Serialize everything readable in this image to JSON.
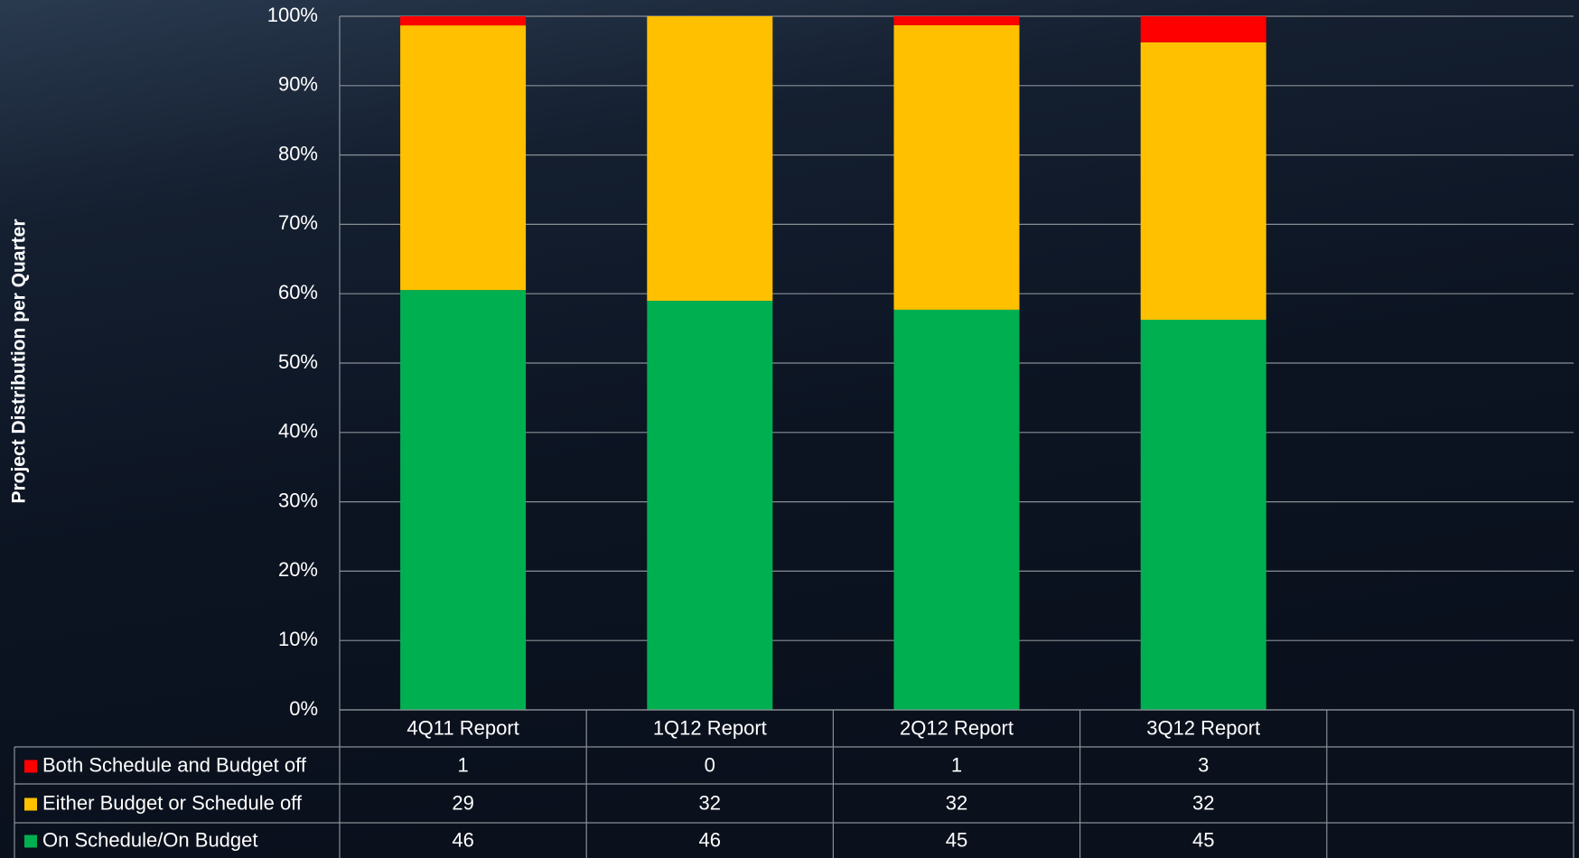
{
  "chart_data": {
    "type": "bar",
    "stacked": "percent",
    "y_label": "Project Distribution per Quarter",
    "categories": [
      "4Q11 Report",
      "1Q12 Report",
      "2Q12 Report",
      "3Q12 Report"
    ],
    "series": [
      {
        "name": "Both Schedule and Budget off",
        "color": "#ff0000",
        "values": [
          1,
          0,
          1,
          3
        ]
      },
      {
        "name": "Either Budget or Schedule off",
        "color": "#ffc000",
        "values": [
          29,
          32,
          32,
          32
        ]
      },
      {
        "name": "On Schedule/On Budget",
        "color": "#00b050",
        "values": [
          46,
          46,
          45,
          45
        ]
      }
    ],
    "ylim": [
      0,
      100
    ],
    "yticks": [
      {
        "value": 0,
        "label": "0%"
      },
      {
        "value": 10,
        "label": "10%"
      },
      {
        "value": 20,
        "label": "20%"
      },
      {
        "value": 30,
        "label": "30%"
      },
      {
        "value": 40,
        "label": "40%"
      },
      {
        "value": 50,
        "label": "50%"
      },
      {
        "value": 60,
        "label": "60%"
      },
      {
        "value": 70,
        "label": "70%"
      },
      {
        "value": 80,
        "label": "80%"
      },
      {
        "value": 90,
        "label": "90%"
      },
      {
        "value": 100,
        "label": "100%"
      }
    ],
    "grid": true
  }
}
